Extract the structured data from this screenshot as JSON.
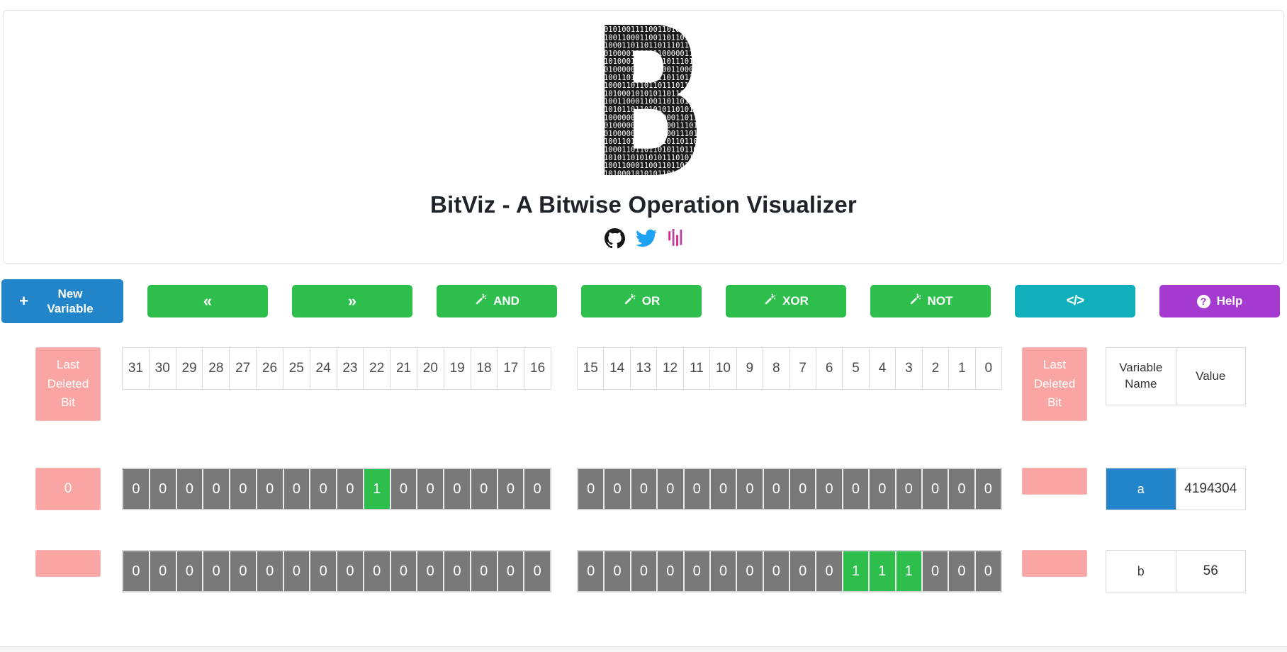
{
  "header": {
    "logo": {
      "letter": "B",
      "binary_rows": [
        "0010101001111001101011100110",
        "1011001100011001101101101110",
        "1011000110110110111011011010",
        "0010100001100011000001100011",
        "0101010001010101101110101100",
        "0010100000110000001100011010",
        "1011001101101101101101101101",
        "1011000110110110111011011010",
        "0101010001010101101110101100",
        "1011001100011001101101101110",
        "0101010110110101011010110010",
        "1011000000011000000110110110",
        "0010100000011000000111010110",
        "0010100000011000000111011010",
        "1011001101101101101101101101",
        "1011000110110110101101101010",
        "0101010110101010111010101100",
        "1011001100011001101101101011",
        "0101010001010101101110101010"
      ]
    },
    "title": "BitViz - A Bitwise Operation Visualizer",
    "social_icons": [
      {
        "name": "github"
      },
      {
        "name": "twitter"
      },
      {
        "name": "soundbars"
      }
    ]
  },
  "toolbar": {
    "buttons": [
      {
        "id": "new-variable",
        "label": "New Variable",
        "icon": "plus",
        "color": "blue"
      },
      {
        "id": "shift-left",
        "label": "«",
        "icon": "",
        "color": "green"
      },
      {
        "id": "shift-right",
        "label": "»",
        "icon": "",
        "color": "green"
      },
      {
        "id": "and",
        "label": "AND",
        "icon": "magic-wand",
        "color": "green"
      },
      {
        "id": "or",
        "label": "OR",
        "icon": "magic-wand",
        "color": "green"
      },
      {
        "id": "xor",
        "label": "XOR",
        "icon": "magic-wand",
        "color": "green"
      },
      {
        "id": "not",
        "label": "NOT",
        "icon": "magic-wand",
        "color": "green"
      },
      {
        "id": "code",
        "label": "",
        "icon": "code",
        "color": "teal"
      },
      {
        "id": "help",
        "label": "Help",
        "icon": "question-circle",
        "color": "purple"
      }
    ]
  },
  "bit_panel": {
    "last_deleted_bit_label": "Last Deleted Bit",
    "high_indices": [
      31,
      30,
      29,
      28,
      27,
      26,
      25,
      24,
      23,
      22,
      21,
      20,
      19,
      18,
      17,
      16
    ],
    "low_indices": [
      15,
      14,
      13,
      12,
      11,
      10,
      9,
      8,
      7,
      6,
      5,
      4,
      3,
      2,
      1,
      0
    ],
    "table_header": {
      "variable_name": "Variable Name",
      "value": "Value"
    }
  },
  "variables": [
    {
      "name": "a",
      "value": "4194304",
      "selected": true,
      "last_deleted_left": "0",
      "last_deleted_right": "",
      "bits": [
        0,
        0,
        0,
        0,
        0,
        0,
        0,
        0,
        0,
        1,
        0,
        0,
        0,
        0,
        0,
        0,
        0,
        0,
        0,
        0,
        0,
        0,
        0,
        0,
        0,
        0,
        0,
        0,
        0,
        0,
        0,
        0
      ]
    },
    {
      "name": "b",
      "value": "56",
      "selected": false,
      "last_deleted_left": "",
      "last_deleted_right": "",
      "bits": [
        0,
        0,
        0,
        0,
        0,
        0,
        0,
        0,
        0,
        0,
        0,
        0,
        0,
        0,
        0,
        0,
        0,
        0,
        0,
        0,
        0,
        0,
        0,
        0,
        0,
        0,
        1,
        1,
        1,
        0,
        0,
        0
      ]
    }
  ],
  "colors": {
    "primary_blue": "#2385c9",
    "green": "#2dbe4c",
    "teal": "#11aebb",
    "purple": "#a43ad0",
    "pink": "#f8a5a3",
    "bit_gray": "#797979",
    "twitter_blue": "#1da1f2",
    "github_black": "#171515",
    "soundbar_pink": "#e0218a",
    "soundbar_purple": "#b0469f"
  }
}
